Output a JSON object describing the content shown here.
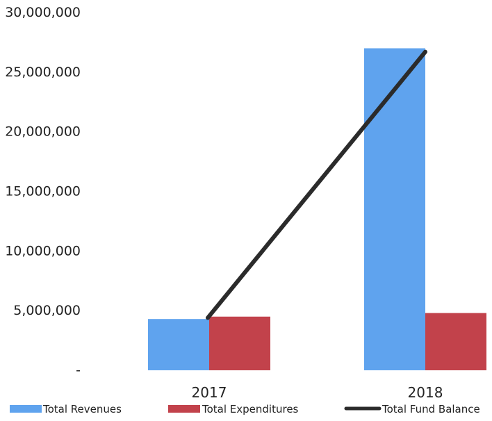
{
  "chart_data": {
    "type": "bar",
    "title": "",
    "xlabel": "",
    "ylabel": "",
    "categories": [
      "2017",
      "2018"
    ],
    "ylim": [
      0,
      30000000
    ],
    "y_ticks": [
      {
        "value": 0,
        "label": "-"
      },
      {
        "value": 5000000,
        "label": "5,000,000"
      },
      {
        "value": 10000000,
        "label": "10,000,000"
      },
      {
        "value": 15000000,
        "label": "15,000,000"
      },
      {
        "value": 20000000,
        "label": "20,000,000"
      },
      {
        "value": 25000000,
        "label": "25,000,000"
      },
      {
        "value": 30000000,
        "label": "30,000,000"
      }
    ],
    "grid": false,
    "legend_position": "bottom",
    "series": [
      {
        "name": "Total Revenues",
        "kind": "bar",
        "color": "#5fa3ee",
        "values": [
          4300000,
          27000000
        ]
      },
      {
        "name": "Total Expenditures",
        "kind": "bar",
        "color": "#c2424b",
        "values": [
          4500000,
          4800000
        ]
      },
      {
        "name": "Total Fund Balance",
        "kind": "line",
        "color": "#2b2b2b",
        "values": [
          4400000,
          26700000
        ]
      }
    ]
  }
}
